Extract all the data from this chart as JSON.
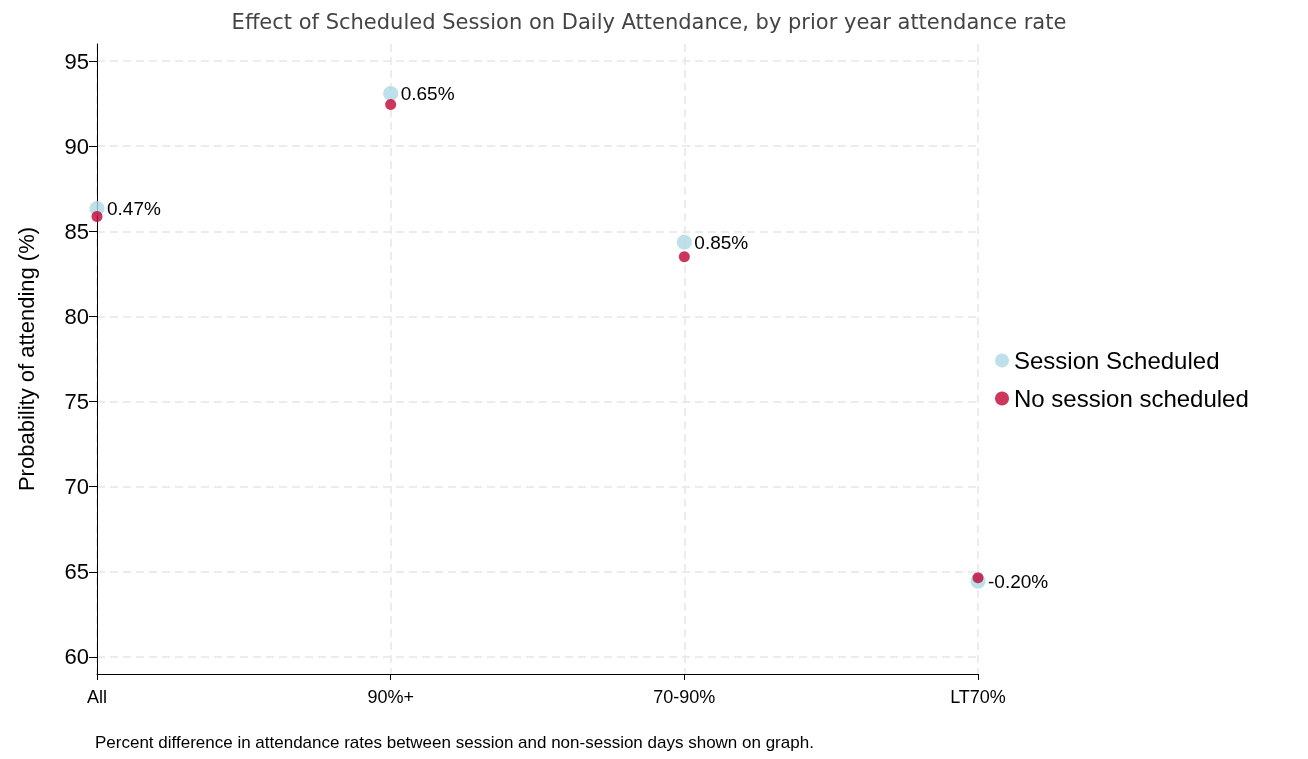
{
  "chart_data": {
    "type": "scatter",
    "title": "Effect of Scheduled Session on Daily Attendance, by prior year attendance rate",
    "ylabel": "Probability of attending (%)",
    "categories": [
      "All",
      "90%+",
      "70-90%",
      "LT70%"
    ],
    "series": [
      {
        "name": "Session Scheduled",
        "color": "#add8e6",
        "values": [
          86.34,
          93.1,
          84.35,
          64.45
        ]
      },
      {
        "name": "No session scheduled",
        "color": "#c10534",
        "values": [
          85.87,
          92.45,
          83.5,
          64.65
        ]
      }
    ],
    "ylim": [
      59,
      96
    ],
    "yticks": [
      60,
      65,
      70,
      75,
      80,
      85,
      90,
      95
    ],
    "annotations": [
      {
        "text": "0.47%",
        "x": "All",
        "y": 86.34
      },
      {
        "text": "0.65%",
        "x": "90%+",
        "y": 93.1
      },
      {
        "text": "0.85%",
        "x": "70-90%",
        "y": 84.35
      },
      {
        "text": "-0.20%",
        "x": "LT70%",
        "y": 64.45
      },
      "Percent difference in attendance rates between session and non-session days shown on graph."
    ],
    "grid": true,
    "legend": "right",
    "marker": "circle"
  }
}
